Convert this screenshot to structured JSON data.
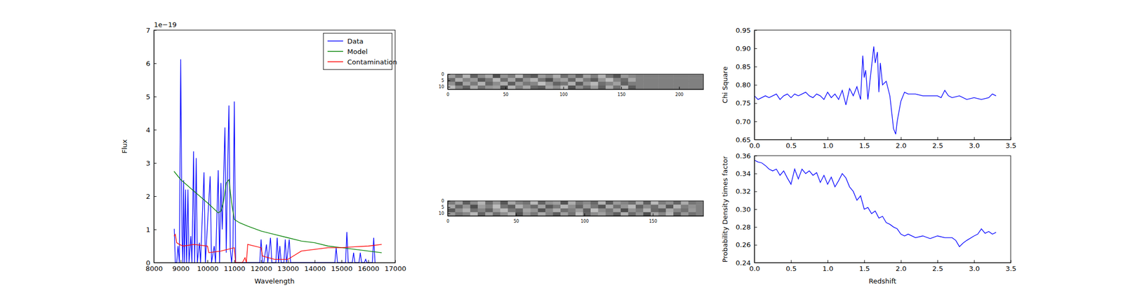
{
  "chart_data": [
    {
      "type": "line",
      "xlabel": "Wavelength",
      "ylabel": "Flux",
      "y_offset_text": "1e−19",
      "xlim": [
        8000,
        17000
      ],
      "xticks": [
        8000,
        9000,
        10000,
        11000,
        12000,
        13000,
        14000,
        15000,
        16000,
        17000
      ],
      "ylim": [
        0,
        7
      ],
      "yticks": [
        0,
        1,
        2,
        3,
        4,
        5,
        6,
        7
      ],
      "legend": "upper right",
      "series": [
        {
          "name": "Data",
          "color": "#0000ff",
          "x": [
            8760,
            8800,
            8850,
            8900,
            8950,
            9000,
            9050,
            9080,
            9110,
            9140,
            9180,
            9220,
            9270,
            9310,
            9380,
            9420,
            9480,
            9520,
            9580,
            9620,
            9700,
            9740,
            9870,
            9920,
            10100,
            10150,
            10250,
            10300,
            10400,
            10450,
            10500,
            10550,
            10600,
            10650,
            10700,
            10740,
            10800,
            10850,
            10900,
            10950,
            11000,
            11050,
            11950,
            12000,
            12050,
            12100,
            12200,
            12250,
            12350,
            12400,
            12550,
            12600,
            12650,
            12700,
            12750,
            12850,
            12900,
            12950,
            13050,
            13100,
            13150,
            14750,
            14800,
            14850,
            14900,
            15150,
            15200,
            15250,
            15400,
            15450,
            15500,
            15650,
            15700,
            15750,
            15850,
            15900,
            15950,
            16150,
            16200,
            16250
          ],
          "values": [
            1.02,
            0,
            0,
            0.5,
            0,
            6.12,
            0.8,
            0,
            2.48,
            0,
            2.2,
            0,
            2.2,
            0,
            0.8,
            0,
            3.35,
            0,
            3.15,
            0,
            0.6,
            0,
            2.72,
            0,
            2.6,
            0,
            0.5,
            0,
            2.78,
            0,
            2.4,
            1.0,
            2.5,
            4.07,
            0.3,
            2.4,
            4.73,
            0.4,
            0,
            0.5,
            4.85,
            0,
            0,
            0.7,
            0,
            0,
            0.55,
            0,
            0.75,
            0,
            0,
            0.75,
            0,
            0.5,
            0,
            0,
            0.7,
            0,
            0.7,
            0,
            0,
            0,
            0.45,
            0,
            0,
            0,
            0.92,
            0,
            0,
            0.3,
            0,
            0,
            0.3,
            0,
            0,
            0.1,
            0,
            0,
            0.75,
            0
          ]
        },
        {
          "name": "Model",
          "color": "#008000",
          "x": [
            8750,
            9000,
            9500,
            10000,
            10400,
            10500,
            10600,
            10700,
            10800,
            10900,
            11000,
            11100,
            11200,
            11500,
            12000,
            12500,
            13000,
            13500,
            14000,
            14500,
            15000,
            15500,
            16000,
            16500
          ],
          "values": [
            2.75,
            2.5,
            2.15,
            1.8,
            1.5,
            1.55,
            1.85,
            2.4,
            2.5,
            1.8,
            1.3,
            1.25,
            1.2,
            1.1,
            0.95,
            0.85,
            0.75,
            0.65,
            0.6,
            0.5,
            0.45,
            0.4,
            0.35,
            0.3
          ]
        },
        {
          "name": "Contamination",
          "color": "#ff0000",
          "x": [
            8750,
            8800,
            8850,
            8950,
            9100,
            9500,
            10000,
            10050,
            10500,
            11000,
            11050,
            11300,
            11400,
            11450,
            11500,
            12000,
            12050,
            12500,
            13000,
            13200,
            13500,
            14000,
            14500,
            15000,
            15500,
            16000,
            16500
          ],
          "values": [
            0.8,
            0.85,
            0.6,
            0.55,
            0.5,
            0.55,
            0.5,
            0.3,
            0.35,
            0.45,
            0,
            0,
            0.15,
            0,
            0.55,
            0.45,
            0.2,
            0.1,
            0.1,
            0.2,
            0.35,
            0.4,
            0.45,
            0.45,
            0.48,
            0.5,
            0.55
          ]
        }
      ]
    },
    {
      "type": "image",
      "xlim": [
        0,
        221
      ],
      "ylim": [
        12,
        0
      ],
      "xticks": [
        0,
        50,
        100,
        150,
        200
      ],
      "yticks": [
        0,
        5,
        10
      ],
      "cells": [
        [
          0.62,
          0.45,
          0.71,
          0.38,
          0.55,
          0.66,
          0.31,
          0.58,
          0.49,
          0.73,
          0.42,
          0.35,
          0.61,
          0.52,
          0.68,
          0.44,
          0.57,
          0.39,
          0.64,
          0.5,
          0.71,
          0.46,
          0.33,
          0.6,
          0.54,
          0.5,
          0.5,
          0.5,
          0.5,
          0.5,
          0.5,
          0.5,
          0.5,
          0.5
        ],
        [
          0.41,
          0.69,
          0.52,
          0.6,
          0.34,
          0.47,
          0.72,
          0.43,
          0.65,
          0.37,
          0.58,
          0.7,
          0.45,
          0.3,
          0.56,
          0.63,
          0.4,
          0.67,
          0.48,
          0.36,
          0.59,
          0.74,
          0.51,
          0.42,
          0.66,
          0.5,
          0.5,
          0.5,
          0.5,
          0.5,
          0.5,
          0.5,
          0.5,
          0.5
        ],
        [
          0.57,
          0.33,
          0.64,
          0.48,
          0.7,
          0.4,
          0.55,
          0.68,
          0.36,
          0.61,
          0.47,
          0.53,
          0.75,
          0.58,
          0.39,
          0.46,
          0.69,
          0.35,
          0.6,
          0.72,
          0.44,
          0.52,
          0.63,
          0.38,
          0.49,
          0.5,
          0.5,
          0.5,
          0.5,
          0.5,
          0.5,
          0.5,
          0.5,
          0.5
        ],
        [
          0.74,
          0.52,
          0.39,
          0.67,
          0.45,
          0.58,
          0.62,
          0.3,
          0.71,
          0.5,
          0.66,
          0.41,
          0.37,
          0.64,
          0.55,
          0.73,
          0.32,
          0.56,
          0.43,
          0.61,
          0.38,
          0.67,
          0.45,
          0.7,
          0.36,
          0.5,
          0.5,
          0.5,
          0.5,
          0.5,
          0.5,
          0.5,
          0.5,
          0.5
        ]
      ]
    },
    {
      "type": "image",
      "xlim": [
        0,
        187
      ],
      "ylim": [
        12,
        0
      ],
      "xticks": [
        0,
        50,
        100,
        150
      ],
      "yticks": [
        0,
        5,
        10
      ],
      "cells": [
        [
          0.48,
          0.63,
          0.37,
          0.55,
          0.71,
          0.42,
          0.59,
          0.34,
          0.66,
          0.51,
          0.45,
          0.72,
          0.39,
          0.57,
          0.62,
          0.33,
          0.68,
          0.47,
          0.54,
          0.41,
          0.7,
          0.36,
          0.6,
          0.52,
          0.44,
          0.65,
          0.38,
          0.73,
          0.49,
          0.56,
          0.4,
          0.67,
          0.46,
          0.5
        ],
        [
          0.66,
          0.4,
          0.58,
          0.31,
          0.62,
          0.5,
          0.74,
          0.45,
          0.37,
          0.69,
          0.53,
          0.42,
          0.64,
          0.35,
          0.48,
          0.71,
          0.56,
          0.39,
          0.61,
          0.47,
          0.33,
          0.67,
          0.44,
          0.58,
          0.72,
          0.38,
          0.55,
          0.43,
          0.63,
          0.34,
          0.7,
          0.49,
          0.57,
          0.5
        ],
        [
          0.35,
          0.57,
          0.69,
          0.44,
          0.52,
          0.38,
          0.61,
          0.73,
          0.47,
          0.4,
          0.65,
          0.59,
          0.32,
          0.54,
          0.68,
          0.43,
          0.5,
          0.62,
          0.37,
          0.75,
          0.55,
          0.46,
          0.64,
          0.3,
          0.58,
          0.49,
          0.7,
          0.41,
          0.36,
          0.66,
          0.53,
          0.44,
          0.6,
          0.5
        ],
        [
          0.6,
          0.46,
          0.53,
          0.72,
          0.39,
          0.64,
          0.43,
          0.56,
          0.7,
          0.33,
          0.58,
          0.47,
          0.67,
          0.51,
          0.36,
          0.62,
          0.45,
          0.74,
          0.4,
          0.55,
          0.63,
          0.49,
          0.37,
          0.69,
          0.42,
          0.57,
          0.31,
          0.65,
          0.52,
          0.71,
          0.38,
          0.59,
          0.44,
          0.5
        ]
      ]
    },
    {
      "type": "line",
      "ylabel": "Chi Square",
      "color": "#0000ff",
      "xlim": [
        0,
        3.5
      ],
      "xticks": [
        {
          "value": 0,
          "label": "0.0"
        },
        0.5,
        {
          "value": 1,
          "label": "1.0"
        },
        1.5,
        {
          "value": 2,
          "label": "2.0"
        },
        2.5,
        {
          "value": 3,
          "label": "3.0"
        },
        3.5
      ],
      "ylim": [
        0.65,
        0.95
      ],
      "yticks": [
        0.65,
        {
          "value": 0.7,
          "label": "0.70"
        },
        0.75,
        {
          "value": 0.8,
          "label": "0.80"
        },
        0.85,
        {
          "value": 0.9,
          "label": "0.90"
        },
        0.95
      ],
      "x": [
        0,
        0.05,
        0.1,
        0.15,
        0.2,
        0.25,
        0.3,
        0.35,
        0.4,
        0.45,
        0.5,
        0.55,
        0.6,
        0.65,
        0.7,
        0.75,
        0.8,
        0.85,
        0.9,
        0.95,
        1.0,
        1.05,
        1.1,
        1.15,
        1.2,
        1.25,
        1.3,
        1.35,
        1.4,
        1.45,
        1.48,
        1.5,
        1.52,
        1.55,
        1.6,
        1.63,
        1.65,
        1.68,
        1.7,
        1.72,
        1.75,
        1.8,
        1.85,
        1.9,
        1.93,
        1.95,
        2.0,
        2.05,
        2.1,
        2.2,
        2.3,
        2.4,
        2.5,
        2.55,
        2.6,
        2.65,
        2.7,
        2.8,
        2.9,
        3.0,
        3.1,
        3.2,
        3.25,
        3.3
      ],
      "values": [
        0.77,
        0.76,
        0.765,
        0.77,
        0.765,
        0.77,
        0.775,
        0.76,
        0.77,
        0.775,
        0.765,
        0.775,
        0.77,
        0.775,
        0.78,
        0.77,
        0.765,
        0.775,
        0.77,
        0.76,
        0.78,
        0.765,
        0.775,
        0.76,
        0.785,
        0.745,
        0.79,
        0.77,
        0.795,
        0.76,
        0.88,
        0.82,
        0.84,
        0.76,
        0.85,
        0.905,
        0.86,
        0.89,
        0.78,
        0.86,
        0.8,
        0.81,
        0.77,
        0.68,
        0.665,
        0.7,
        0.755,
        0.78,
        0.775,
        0.775,
        0.77,
        0.77,
        0.77,
        0.765,
        0.785,
        0.77,
        0.765,
        0.77,
        0.76,
        0.765,
        0.76,
        0.765,
        0.775,
        0.77
      ]
    },
    {
      "type": "line",
      "xlabel": "Redshift",
      "ylabel": "Probability Density times factor",
      "color": "#0000ff",
      "xlim": [
        0,
        3.5
      ],
      "xticks": [
        {
          "value": 0,
          "label": "0.0"
        },
        0.5,
        {
          "value": 1,
          "label": "1.0"
        },
        1.5,
        {
          "value": 2,
          "label": "2.0"
        },
        2.5,
        {
          "value": 3,
          "label": "3.0"
        },
        3.5
      ],
      "ylim": [
        0.24,
        0.36
      ],
      "yticks": [
        0.24,
        0.26,
        0.28,
        {
          "value": 0.3,
          "label": "0.30"
        },
        0.32,
        0.34,
        0.36
      ],
      "x": [
        0,
        0.05,
        0.1,
        0.15,
        0.2,
        0.25,
        0.3,
        0.35,
        0.4,
        0.45,
        0.5,
        0.55,
        0.6,
        0.65,
        0.7,
        0.75,
        0.8,
        0.85,
        0.9,
        0.95,
        1.0,
        1.05,
        1.1,
        1.15,
        1.2,
        1.25,
        1.3,
        1.35,
        1.4,
        1.45,
        1.5,
        1.55,
        1.6,
        1.65,
        1.7,
        1.75,
        1.8,
        1.85,
        1.9,
        1.95,
        2.0,
        2.05,
        2.1,
        2.2,
        2.3,
        2.4,
        2.5,
        2.6,
        2.7,
        2.75,
        2.8,
        2.85,
        2.9,
        3.0,
        3.05,
        3.1,
        3.15,
        3.2,
        3.25,
        3.3
      ],
      "values": [
        0.355,
        0.353,
        0.352,
        0.349,
        0.345,
        0.343,
        0.345,
        0.338,
        0.343,
        0.335,
        0.328,
        0.345,
        0.334,
        0.345,
        0.34,
        0.343,
        0.338,
        0.341,
        0.33,
        0.338,
        0.328,
        0.336,
        0.325,
        0.332,
        0.34,
        0.335,
        0.325,
        0.32,
        0.31,
        0.315,
        0.3,
        0.302,
        0.295,
        0.298,
        0.29,
        0.292,
        0.285,
        0.283,
        0.28,
        0.278,
        0.272,
        0.27,
        0.272,
        0.268,
        0.27,
        0.267,
        0.27,
        0.268,
        0.268,
        0.265,
        0.258,
        0.262,
        0.265,
        0.27,
        0.272,
        0.278,
        0.273,
        0.275,
        0.272,
        0.274
      ]
    }
  ]
}
